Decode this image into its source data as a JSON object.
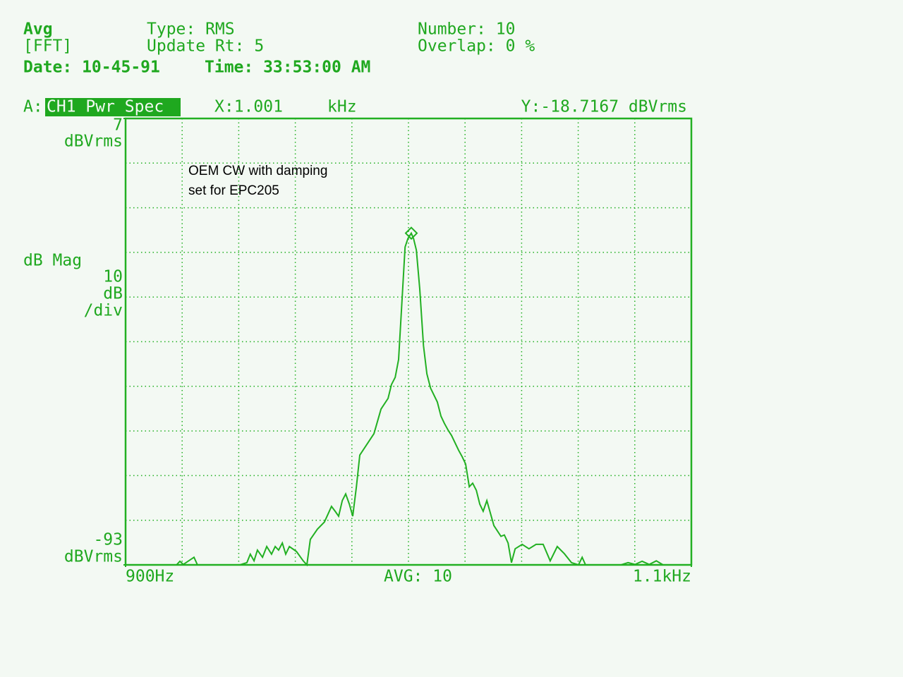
{
  "header": {
    "mode": "Avg",
    "sub_mode": "[FFT]",
    "type": "Type: RMS",
    "update_rate": "Update Rt: 5",
    "number": "Number: 10",
    "overlap": "Overlap: 0 %",
    "date": "Date: 10-45-91",
    "time": "Time: 33:53:00 AM"
  },
  "trace_bar": {
    "trace": "A:",
    "measurement": "CH1 Pwr Spec",
    "x_readout": "X:1.001",
    "x_unit": "kHz",
    "y_readout": "Y:-18.7167 dBVrms"
  },
  "scale": {
    "format": "dB Mag",
    "per_div_value": "10",
    "per_div_unit": "dB",
    "per_div_suffix": "/div"
  },
  "footer": {
    "average": "AVG:   10"
  },
  "chart_data": {
    "type": "line",
    "annotation": [
      "OEM CW with damping",
      "set for EPC205"
    ],
    "y_unit": "dBVrms",
    "xlim": [
      900,
      1100
    ],
    "ylim": [
      -93,
      7
    ],
    "xticks": [
      {
        "value": 900,
        "label": "900Hz"
      },
      {
        "value": 1100,
        "label": "1.1kHz"
      }
    ],
    "yticks": [
      -93,
      7
    ],
    "grid": true,
    "x": [
      900,
      918.0,
      919.2,
      920.4,
      924.2,
      925.4,
      935.4,
      940.4,
      942.9,
      944.1,
      945.4,
      946.6,
      948.4,
      949.9,
      951.6,
      952.9,
      954.1,
      955.4,
      956.6,
      957.9,
      960.4,
      962.8,
      964.1,
      965.3,
      967.8,
      970.3,
      972.8,
      974.1,
      975.3,
      976.6,
      977.8,
      979.1,
      980.3,
      981.6,
      982.8,
      985.3,
      987.8,
      990.3,
      992.8,
      994.0,
      995.3,
      996.5,
      997.8,
      998.8,
      999.8,
      1001,
      1001.8,
      1002.8,
      1004.0,
      1005.3,
      1006.5,
      1007.8,
      1010.2,
      1011.5,
      1012.7,
      1014.0,
      1015.2,
      1017.7,
      1019.0,
      1020.2,
      1021.5,
      1022.7,
      1024.0,
      1025.2,
      1026.4,
      1027.7,
      1030.2,
      1032.7,
      1033.9,
      1035.2,
      1036.4,
      1037.7,
      1040.2,
      1042.6,
      1045.1,
      1047.6,
      1050.1,
      1052.6,
      1055.1,
      1057.6,
      1060.1,
      1061.4,
      1062.6,
      1075.1,
      1077.6,
      1080.1,
      1082.6,
      1085.1,
      1087.6,
      1090.0,
      1100
    ],
    "series": [
      {
        "color": "#22b022",
        "values": [
          -93,
          -93,
          -92.2,
          -92.9,
          -91.3,
          -93,
          -93,
          -93,
          -92.5,
          -90.6,
          -92.1,
          -89.7,
          -91.3,
          -88.9,
          -90.6,
          -88.9,
          -89.7,
          -88.1,
          -90.6,
          -88.9,
          -90.0,
          -92.1,
          -93,
          -87.3,
          -85.0,
          -83.4,
          -79.9,
          -81.0,
          -82.1,
          -78.6,
          -77.1,
          -79.4,
          -82.1,
          -75.5,
          -68.4,
          -66.0,
          -63.6,
          -58.1,
          -55.7,
          -52.6,
          -51.0,
          -47.0,
          -32.8,
          -21.8,
          -19.9,
          -18.7,
          -19.9,
          -22.5,
          -31.2,
          -43.9,
          -50.2,
          -53.4,
          -56.5,
          -59.7,
          -61.3,
          -62.8,
          -64.0,
          -67.3,
          -68.8,
          -70.4,
          -75.5,
          -74.7,
          -76.3,
          -79.4,
          -81.0,
          -78.6,
          -84.2,
          -86.6,
          -86.3,
          -88.1,
          -92.5,
          -89.4,
          -88.4,
          -89.4,
          -88.4,
          -88.4,
          -92.1,
          -88.9,
          -90.5,
          -92.5,
          -93,
          -91.3,
          -93,
          -93,
          -92.5,
          -92.9,
          -92.2,
          -92.9,
          -92.1,
          -93,
          -93
        ]
      }
    ]
  }
}
